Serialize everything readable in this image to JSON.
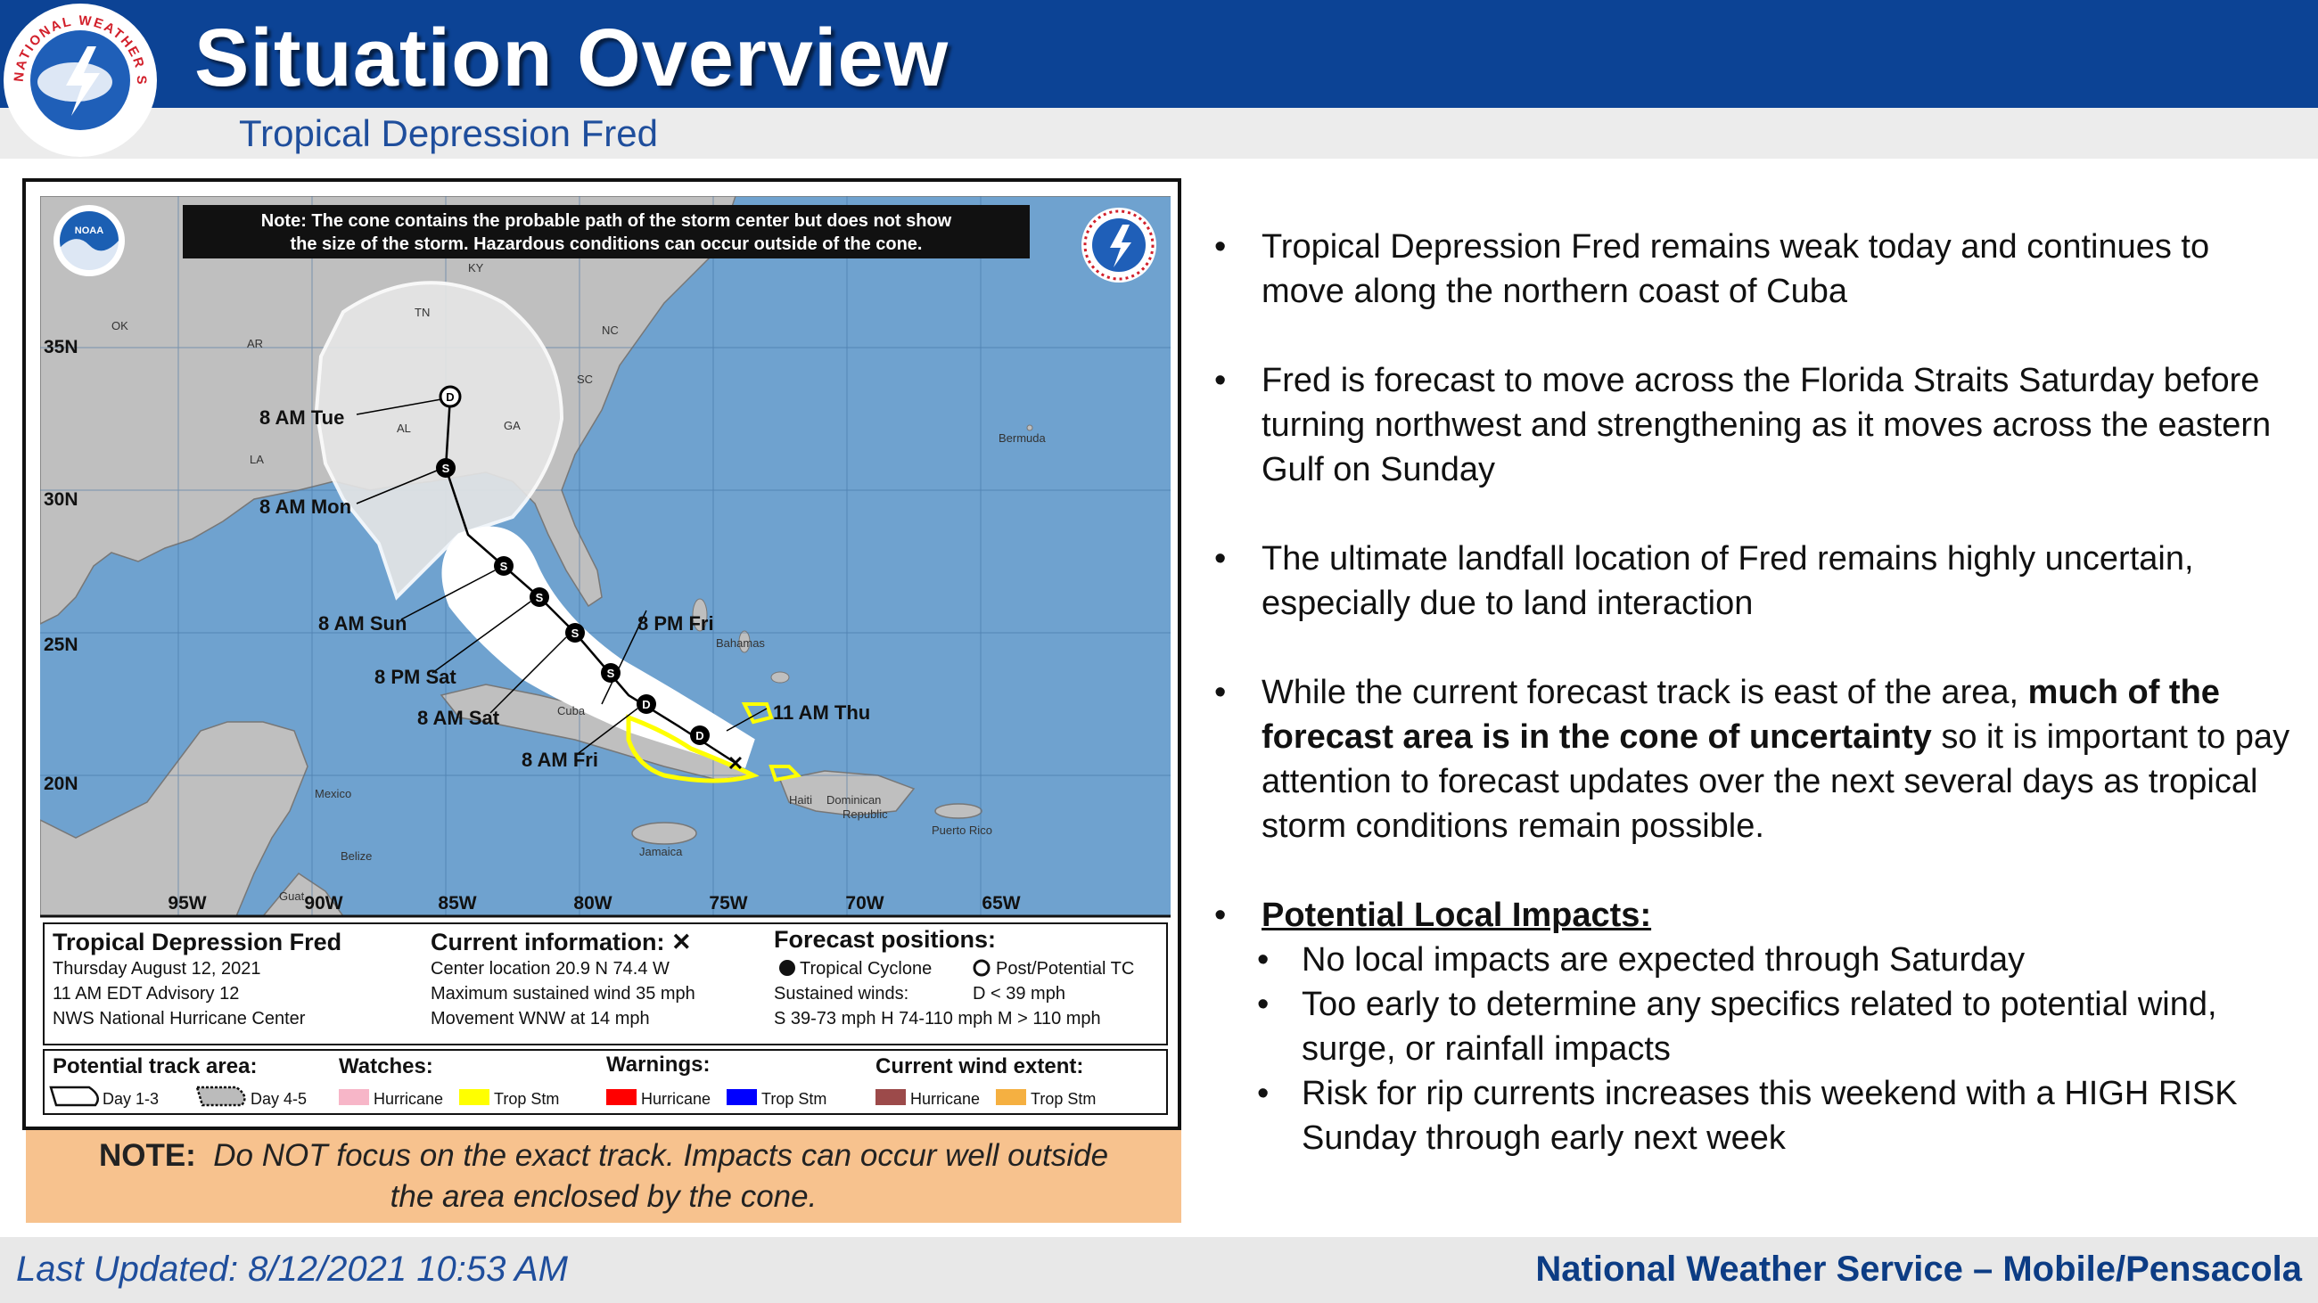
{
  "header": {
    "title": "Situation Overview",
    "subtitle": "Tropical Depression Fred",
    "logo_text": "NATIONAL WEATHER SERVICE"
  },
  "map": {
    "note_line1": "Note: The cone contains the probable path of the storm center but does not show",
    "note_line2": "the size of the storm. Hazardous conditions can occur outside of the cone.",
    "noaa_logo": "NOAA",
    "lat_labels": [
      "35N",
      "30N",
      "25N",
      "20N"
    ],
    "lon_labels": [
      "95W",
      "90W",
      "85W",
      "80W",
      "75W",
      "70W",
      "65W"
    ],
    "state_labels": [
      "KY",
      "TN",
      "NC",
      "SC",
      "GA",
      "AL",
      "LA",
      "AR",
      "OK"
    ],
    "place_labels": [
      "Bermuda",
      "Bahamas",
      "Cuba",
      "Haiti",
      "Dominican",
      "Republic",
      "Puerto Rico",
      "Jamaica",
      "Mexico",
      "Belize",
      "Guat"
    ],
    "forecast_labels": [
      "8 AM Tue",
      "8 AM Mon",
      "8 AM Sun",
      "8 PM Sat",
      "8 AM Sat",
      "8 AM Fri",
      "8 PM Fri",
      "11 AM Thu"
    ],
    "storm_name": "Tropical Depression Fred",
    "date": "Thursday August 12, 2021",
    "advisory": "11 AM EDT Advisory 12",
    "center": "NWS National Hurricane Center",
    "current_header": "Current information: ✕",
    "current_loc": "Center location 20.9 N 74.4 W",
    "current_wind": "Maximum sustained wind 35 mph",
    "current_move": "Movement WNW at 14 mph",
    "forecast_header": "Forecast positions:",
    "fp_tc": "Tropical Cyclone",
    "fp_post": "Post/Potential TC",
    "fp_winds": "Sustained winds:",
    "fp_d": "D < 39 mph",
    "fp_cats": "S 39-73 mph  H 74-110 mph  M > 110 mph",
    "legend_track": "Potential track area:",
    "legend_day13": "Day 1-3",
    "legend_day45": "Day 4-5",
    "legend_watches": "Watches:",
    "legend_warnings": "Warnings:",
    "legend_wind": "Current wind extent:",
    "legend_hurricane": "Hurricane",
    "legend_tropstm": "Trop Stm",
    "colors": {
      "ocean": "#6fa2cf",
      "land": "#bfbfbf",
      "watch_hurricane": "#f7b6c8",
      "watch_trop": "#ffff00",
      "warn_hurricane": "#ff0000",
      "warn_trop": "#0000ff",
      "wind_hurricane": "#9c4a4a",
      "wind_trop": "#f5b041"
    }
  },
  "note": {
    "label": "NOTE",
    "text1": "Do NOT focus on the exact track. Impacts can occur well outside",
    "text2": "the area enclosed by the cone."
  },
  "bullets": {
    "b1": "Tropical Depression Fred remains weak today and continues to move along the northern coast of Cuba",
    "b2": "Fred is forecast to move across the Florida Straits Saturday before turning northwest and strengthening as it moves across the eastern Gulf on Sunday",
    "b3": "The ultimate landfall location of Fred remains highly uncertain, especially due to land interaction",
    "b4_pre": "While the current forecast track is east of the area, ",
    "b4_bold": "much of the forecast area is in the cone of uncertainty",
    "b4_post": " so it is important to pay attention to forecast updates over the next several days as tropical storm conditions remain possible.",
    "b5_head": "Potential Local Impacts:",
    "sub1": "No local impacts are expected through Saturday",
    "sub2": "Too early to determine any specifics related to potential wind, surge, or rainfall impacts",
    "sub3": "Risk for rip currents increases this weekend with a HIGH RISK Sunday through early next week"
  },
  "footer": {
    "updated": "Last Updated: 8/12/2021 10:53 AM",
    "office": "National Weather Service – Mobile/Pensacola"
  }
}
